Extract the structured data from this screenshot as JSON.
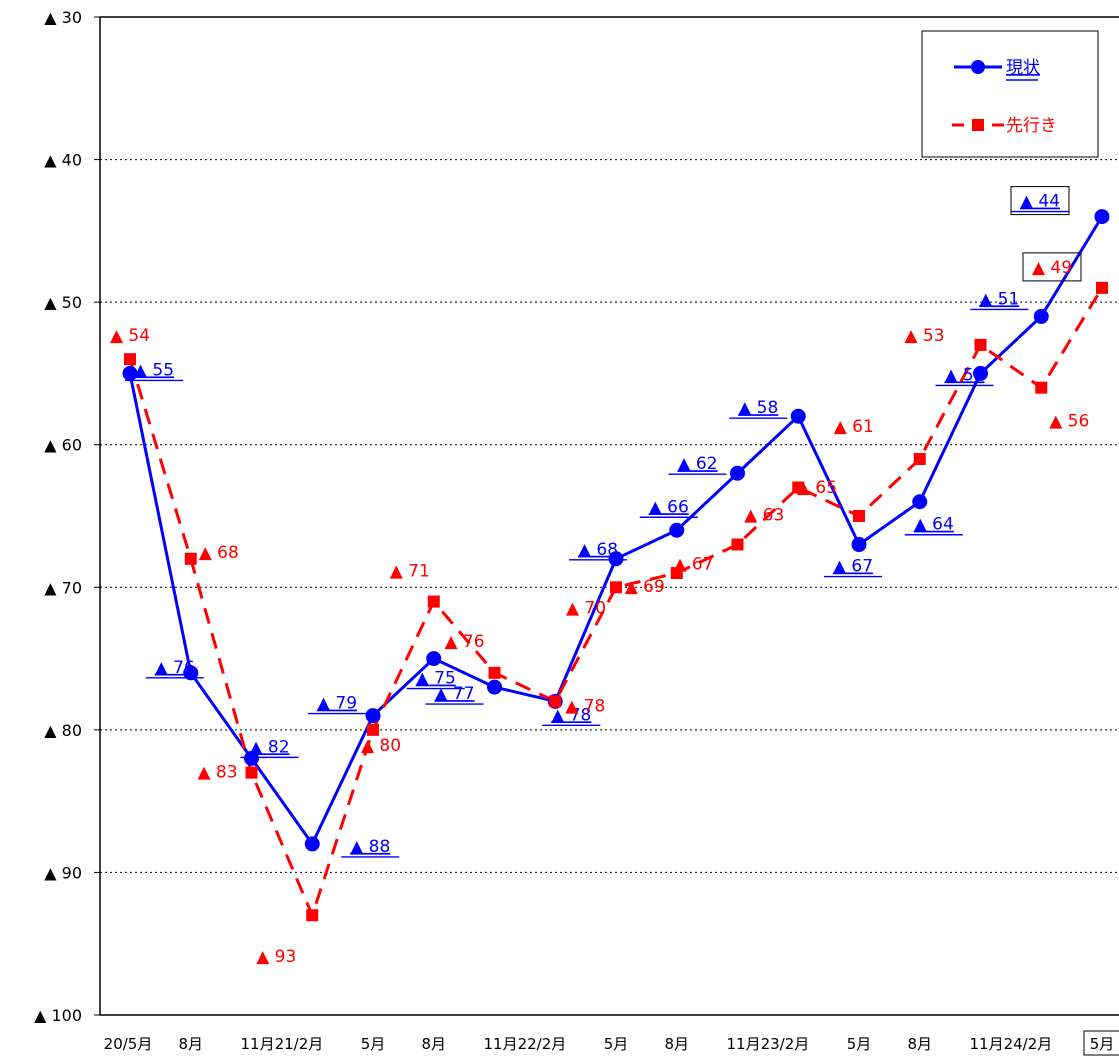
{
  "chart_data": {
    "type": "line",
    "title": "",
    "xlabel": "",
    "ylabel": "",
    "y_inverted": true,
    "ylim": [
      30,
      100
    ],
    "y_ticks": [
      30,
      40,
      50,
      60,
      70,
      80,
      90,
      100
    ],
    "y_tick_prefix": "▲",
    "grid": "horizontal dotted",
    "legend_position": "top-right",
    "categories": [
      "20/5月",
      "8月",
      "11月",
      "21/2月",
      "5月",
      "8月",
      "11月",
      "22/2月",
      "5月",
      "8月",
      "11月",
      "23/2月",
      "5月",
      "8月",
      "11月",
      "24/2月",
      "5月"
    ],
    "x_tick_labels": [
      "20/5月",
      "8月",
      "11月21/2月",
      "5月",
      "8月",
      "11月22/2月",
      "5月",
      "8月",
      "11月23/2月",
      "5月",
      "8月",
      "11月24/2月",
      "5月"
    ],
    "series": [
      {
        "name": "現状",
        "color": "#0000ff",
        "line_style": "solid",
        "marker": "circle",
        "values": [
          55,
          76,
          82,
          88,
          79,
          75,
          77,
          78,
          68,
          66,
          62,
          58,
          67,
          64,
          55,
          51,
          44
        ],
        "labels": [
          "▲ 55",
          "▲ 76",
          "▲ 82",
          "▲ 88",
          "▲ 79",
          "▲ 75",
          "▲ 77",
          "▲ 78",
          "▲ 68",
          "▲ 66",
          "▲ 62",
          "▲ 58",
          "▲ 67",
          "▲ 64",
          "▲ 55",
          "▲ 51",
          "▲ 44"
        ]
      },
      {
        "name": "先行き",
        "color": "#ff0000",
        "line_style": "dashed",
        "marker": "square",
        "values": [
          54,
          68,
          83,
          93,
          80,
          71,
          76,
          78,
          70,
          69,
          67,
          63,
          65,
          61,
          53,
          56,
          49
        ],
        "labels": [
          "▲ 54",
          "▲ 68",
          "▲ 83",
          "▲ 93",
          "▲ 80",
          "▲ 71",
          "▲ 76",
          "▲ 78",
          "▲ 70",
          "▲ 69",
          "▲ 67",
          "▲ 63",
          "▲ 65",
          "▲ 61",
          "▲ 53",
          "▲ 56",
          "▲ 49"
        ]
      }
    ],
    "highlighted_labels": {
      "現状": "▲ 44",
      "先行き": "▲ 49",
      "x_tick": "5月"
    }
  }
}
